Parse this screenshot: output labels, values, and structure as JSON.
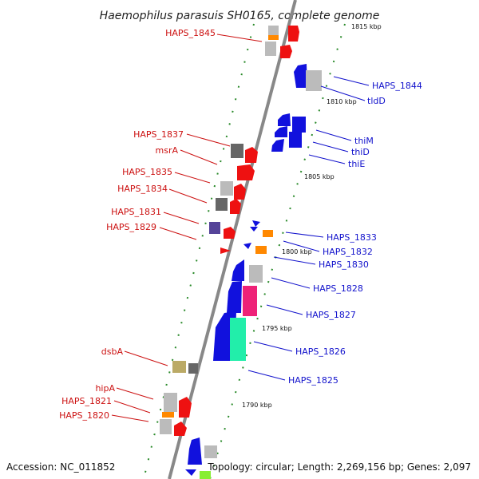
{
  "title": "Haemophilus parasuis SH0165, complete genome",
  "footer": {
    "accession": "Accession: NC_011852",
    "topology": "Topology: circular; Length: 2,269,156 bp; Genes: 2,097"
  },
  "colors": {
    "axis": "#888888",
    "tick": "#2a8a2a",
    "forward_label": "#cc1111",
    "reverse_label": "#1111cc",
    "red_gene": "#ee1111",
    "blue_gene": "#1111dd",
    "grey_gene": "#bbbbbb",
    "darkgrey_gene": "#666666",
    "orange_gene": "#ff8800",
    "magenta_gene": "#ee2277",
    "teal_gene": "#22eeaa",
    "olive_gene": "#bbaa66",
    "purple_gene": "#554499",
    "lime_gene": "#88ee33"
  },
  "scale_labels": [
    "1815 kbp",
    "1810 kbp",
    "1805 kbp",
    "1800 kbp",
    "1795 kbp",
    "1790 kbp"
  ],
  "labels_left": [
    "HAPS_1845",
    "HAPS_1837",
    "msrA",
    "HAPS_1835",
    "HAPS_1834",
    "HAPS_1831",
    "HAPS_1829",
    "dsbA",
    "hipA",
    "HAPS_1821",
    "HAPS_1820"
  ],
  "labels_right": [
    "HAPS_1844",
    "tldD",
    "thiM",
    "thiD",
    "thiE",
    "HAPS_1833",
    "HAPS_1832",
    "HAPS_1830",
    "HAPS_1828",
    "HAPS_1827",
    "HAPS_1826",
    "HAPS_1825"
  ]
}
